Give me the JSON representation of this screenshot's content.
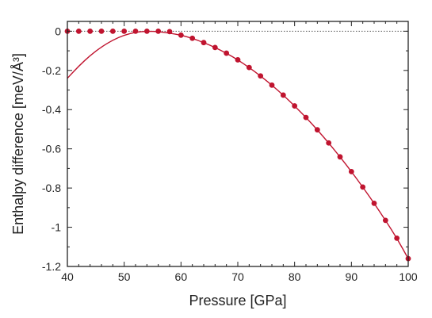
{
  "chart_data": {
    "type": "line",
    "xlabel": "Pressure [GPa]",
    "ylabel": "Enthalpy difference [meV/Å³]",
    "xlim": [
      40,
      100
    ],
    "ylim": [
      -1.2,
      0.05
    ],
    "xticks": [
      40,
      50,
      60,
      70,
      80,
      90,
      100
    ],
    "xtick_labels": [
      "40",
      "50",
      "60",
      "70",
      "80",
      "90",
      "100"
    ],
    "yticks": [
      0,
      -0.2,
      -0.4,
      -0.6,
      -0.8,
      -1,
      -1.2
    ],
    "ytick_labels": [
      "0",
      "-0.2",
      "-0.4",
      "-0.6",
      "-0.8",
      "-1",
      "-1.2"
    ],
    "reference_line": {
      "y": 0,
      "style": "dotted",
      "color": "#555555"
    },
    "series": [
      {
        "type": "line",
        "color": "#c0142f",
        "x": [
          40,
          42,
          44,
          46,
          48,
          50,
          52,
          54,
          56,
          58,
          60,
          62,
          64,
          66,
          68,
          70,
          72,
          74,
          76,
          78,
          80,
          82,
          84,
          86,
          88,
          90,
          92,
          94,
          96,
          98,
          100
        ],
        "y": [
          -0.24,
          -0.178,
          -0.124,
          -0.08,
          -0.045,
          -0.02,
          -0.005,
          0.0,
          -0.002,
          -0.01,
          -0.02,
          -0.036,
          -0.058,
          -0.083,
          -0.112,
          -0.146,
          -0.185,
          -0.228,
          -0.275,
          -0.326,
          -0.381,
          -0.44,
          -0.503,
          -0.57,
          -0.641,
          -0.716,
          -0.795,
          -0.878,
          -0.965,
          -1.056,
          -1.16
        ]
      },
      {
        "type": "scatter",
        "color": "#c0142f",
        "x": [
          40,
          42,
          44,
          46,
          48,
          50,
          52,
          54,
          56,
          58,
          60,
          62,
          64,
          66,
          68,
          70,
          72,
          74,
          76,
          78,
          80,
          82,
          84,
          86,
          88,
          90,
          92,
          94,
          96,
          98,
          100
        ],
        "y": [
          0,
          0,
          0,
          0,
          0,
          0,
          0,
          0,
          0,
          -0.002,
          -0.02,
          -0.036,
          -0.058,
          -0.083,
          -0.112,
          -0.146,
          -0.185,
          -0.228,
          -0.275,
          -0.326,
          -0.381,
          -0.44,
          -0.503,
          -0.57,
          -0.641,
          -0.716,
          -0.795,
          -0.878,
          -0.965,
          -1.056,
          -1.16
        ]
      }
    ]
  }
}
